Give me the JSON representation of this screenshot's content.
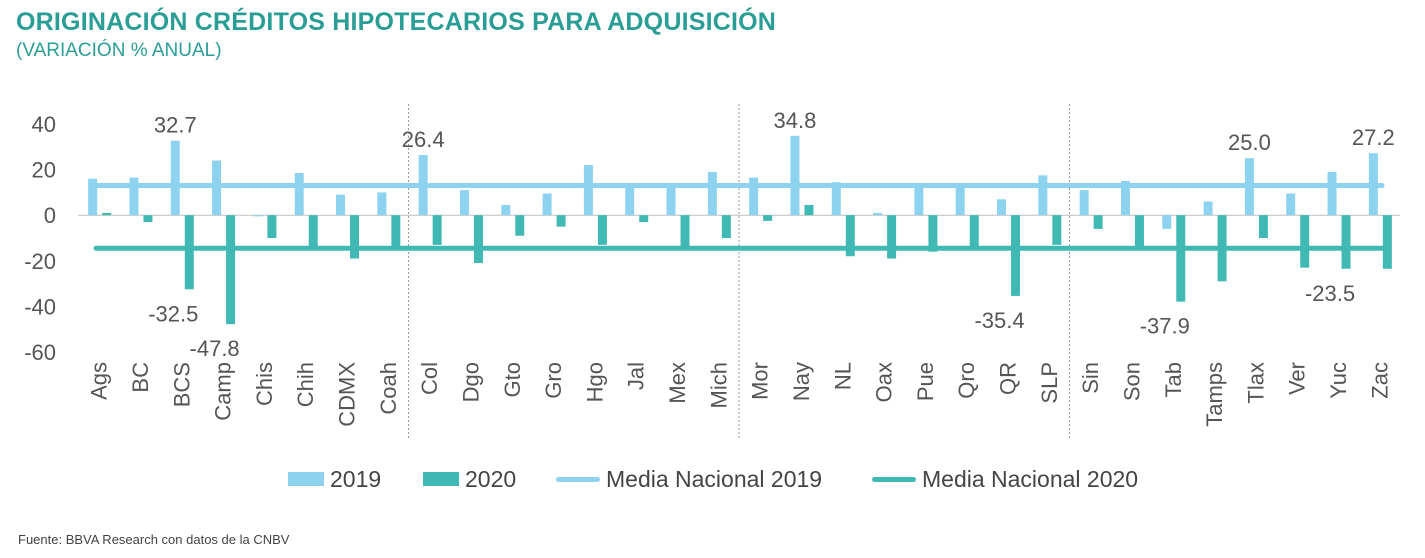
{
  "header": {
    "title": "ORIGINACIÓN CRÉDITOS HIPOTECARIOS PARA ADQUISICIÓN",
    "subtitle": "(VARIACIÓN % ANUAL)"
  },
  "source": "Fuente: BBVA Research con datos de la CNBV",
  "colors": {
    "series_2019": "#8dd3f0",
    "series_2020": "#40b9b5",
    "media_2019": "#8dd3f0",
    "media_2020": "#40b9b5",
    "title": "#2a9d95",
    "axis_text": "#555555"
  },
  "chart_data": {
    "type": "bar",
    "categories": [
      "Ags",
      "BC",
      "BCS",
      "Camp",
      "Chis",
      "Chih",
      "CDMX",
      "Coah",
      "Col",
      "Dgo",
      "Gto",
      "Gro",
      "Hgo",
      "Jal",
      "Mex",
      "Mich",
      "Mor",
      "Nay",
      "NL",
      "Oax",
      "Pue",
      "Qro",
      "QR",
      "SLP",
      "Sin",
      "Son",
      "Tab",
      "Tamps",
      "Tlax",
      "Ver",
      "Yuc",
      "Zac"
    ],
    "series": [
      {
        "name": "2019",
        "values": [
          16,
          16.5,
          32.7,
          24,
          -0.5,
          18.5,
          9,
          10,
          26.4,
          11,
          4.5,
          9.5,
          22,
          12.5,
          13,
          19,
          16.5,
          34.8,
          14.5,
          1,
          13,
          14,
          7,
          17.5,
          11,
          15,
          -6,
          6,
          25.0,
          9.5,
          19,
          27.2
        ]
      },
      {
        "name": "2020",
        "values": [
          1,
          -3,
          -32.5,
          -47.8,
          -10,
          -15,
          -19,
          -15,
          -13,
          -21,
          -9,
          -5,
          -13,
          -3,
          -15,
          -10,
          -2.5,
          4.5,
          -18,
          -19,
          -16,
          -15,
          -35.4,
          -13,
          -6,
          -15,
          -37.9,
          -29,
          -10,
          -23,
          -23.5,
          -23.5
        ]
      }
    ],
    "reference_lines": [
      {
        "name": "Media Nacional 2019",
        "value": 13
      },
      {
        "name": "Media Nacional 2020",
        "value": -14.5
      }
    ],
    "data_labels": [
      {
        "category": "BCS",
        "series": "2019",
        "text": "32.7"
      },
      {
        "category": "BCS",
        "series": "2020",
        "text": "-32.5"
      },
      {
        "category": "Camp",
        "series": "2020",
        "text": "-47.8"
      },
      {
        "category": "Col",
        "series": "2019",
        "text": "26.4"
      },
      {
        "category": "Nay",
        "series": "2019",
        "text": "34.8"
      },
      {
        "category": "QR",
        "series": "2020",
        "text": "-35.4"
      },
      {
        "category": "Tab",
        "series": "2020",
        "text": "-37.9"
      },
      {
        "category": "Tlax",
        "series": "2019",
        "text": "25.0"
      },
      {
        "category": "Yuc",
        "series": "2020",
        "text": "-23.5"
      },
      {
        "category": "Zac",
        "series": "2019",
        "text": "27.2"
      }
    ],
    "ylim": [
      -60,
      40
    ],
    "yticks": [
      "40",
      "20",
      "0",
      "-20",
      "-40",
      "-60"
    ],
    "separators_after": [
      "Coah",
      "Mich",
      "SLP"
    ],
    "legend_position": "bottom",
    "grid": false
  }
}
